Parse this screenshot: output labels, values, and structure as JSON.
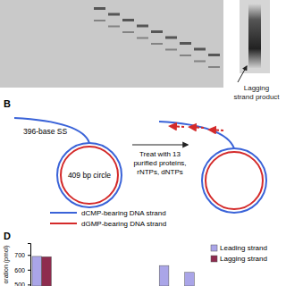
{
  "panel_labels": [
    "B",
    "D"
  ],
  "gel": {
    "annotation": [
      "Lagging",
      "strand product"
    ]
  },
  "diagram": {
    "tail_label": "396-base SS",
    "circle_label": "409 bp circle",
    "treatment": [
      "Treat with 13",
      "purified proteins,",
      "rNTPs, dNTPs"
    ],
    "legend": [
      {
        "label": "dCMP-bearing DNA strand",
        "color": "#3a63d8"
      },
      {
        "label": "dGMP-bearing DNA strand",
        "color": "#d42a2a"
      }
    ]
  },
  "chart_data": {
    "type": "bar",
    "y_label": "oration (pmol)",
    "categories": [
      null,
      null,
      null,
      null,
      null,
      null,
      null
    ],
    "series": [
      {
        "name": "Leading strand",
        "color": "#aaa5e8",
        "values": [
          690,
          null,
          null,
          null,
          null,
          628,
          582
        ]
      },
      {
        "name": "Lagging strand",
        "color": "#8e2c4f",
        "values": [
          688,
          null,
          null,
          null,
          null,
          null,
          null
        ]
      }
    ],
    "ylim": [
      490,
      780
    ],
    "yticks": [
      500,
      600,
      700
    ],
    "legend": "top-right",
    "tick_labels": "y"
  }
}
